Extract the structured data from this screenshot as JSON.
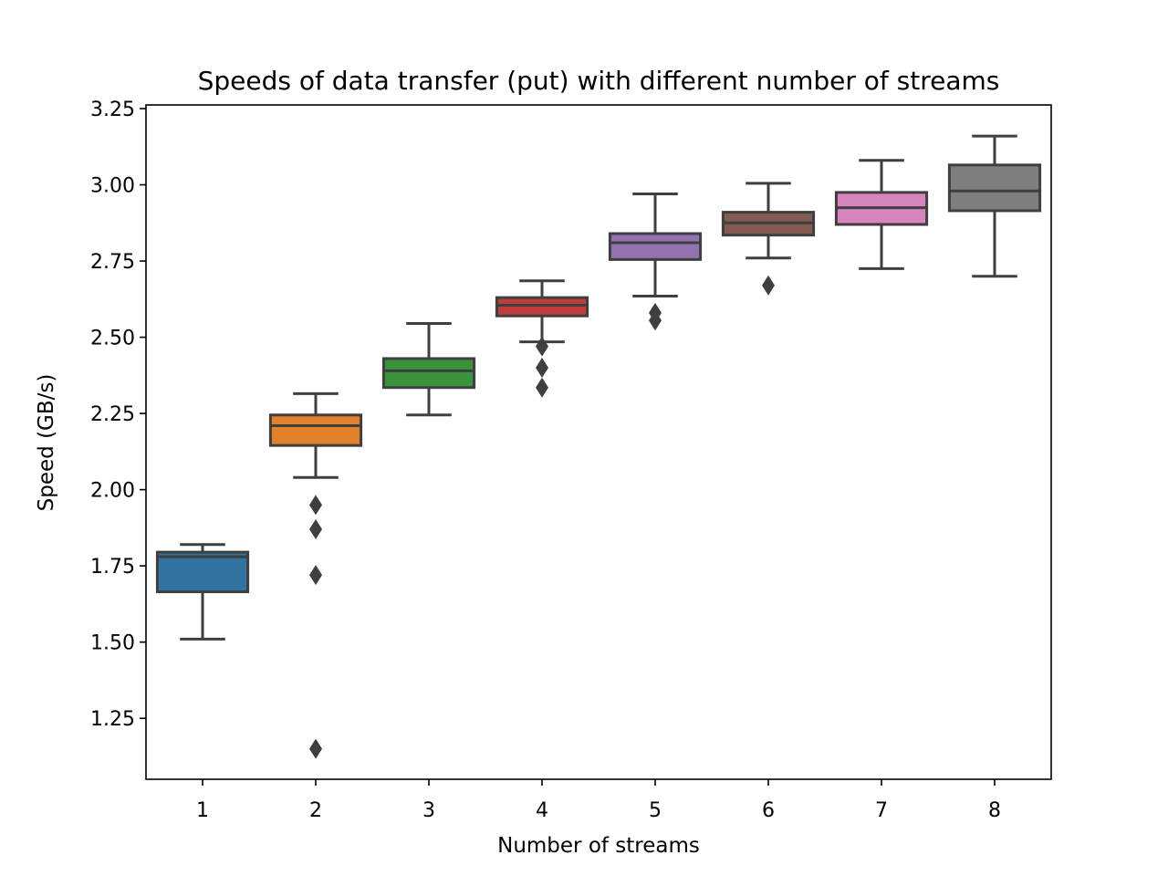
{
  "chart_data": {
    "type": "box",
    "title": "Speeds of data transfer (put) with different number of streams",
    "xlabel": "Number of streams",
    "ylabel": "Speed (GB/s)",
    "categories": [
      "1",
      "2",
      "3",
      "4",
      "5",
      "6",
      "7",
      "8"
    ],
    "ylim": [
      1.05,
      3.262
    ],
    "yticks": [
      1.25,
      1.5,
      1.75,
      2.0,
      2.25,
      2.5,
      2.75,
      3.0,
      3.25
    ],
    "ytick_labels": [
      "1.25",
      "1.50",
      "1.75",
      "2.00",
      "2.25",
      "2.50",
      "2.75",
      "3.00",
      "3.25"
    ],
    "grid": false,
    "legend": "none",
    "boxes": [
      {
        "category": "1",
        "whisker_low": 1.51,
        "q1": 1.665,
        "median": 1.78,
        "q3": 1.795,
        "whisker_high": 1.82,
        "outliers": [],
        "color": "#3274a1"
      },
      {
        "category": "2",
        "whisker_low": 2.04,
        "q1": 2.145,
        "median": 2.21,
        "q3": 2.245,
        "whisker_high": 2.315,
        "outliers": [
          1.95,
          1.87,
          1.72,
          1.15
        ],
        "color": "#e1812c"
      },
      {
        "category": "3",
        "whisker_low": 2.245,
        "q1": 2.335,
        "median": 2.39,
        "q3": 2.43,
        "whisker_high": 2.545,
        "outliers": [],
        "color": "#3a923a"
      },
      {
        "category": "4",
        "whisker_low": 2.485,
        "q1": 2.57,
        "median": 2.605,
        "q3": 2.63,
        "whisker_high": 2.685,
        "outliers": [
          2.47,
          2.4,
          2.335
        ],
        "color": "#c03d3e"
      },
      {
        "category": "5",
        "whisker_low": 2.635,
        "q1": 2.755,
        "median": 2.81,
        "q3": 2.84,
        "whisker_high": 2.97,
        "outliers": [
          2.58,
          2.555
        ],
        "color": "#9372b2"
      },
      {
        "category": "6",
        "whisker_low": 2.76,
        "q1": 2.835,
        "median": 2.875,
        "q3": 2.91,
        "whisker_high": 3.005,
        "outliers": [
          2.67
        ],
        "color": "#845b53"
      },
      {
        "category": "7",
        "whisker_low": 2.725,
        "q1": 2.87,
        "median": 2.925,
        "q3": 2.975,
        "whisker_high": 3.08,
        "outliers": [],
        "color": "#d684bd"
      },
      {
        "category": "8",
        "whisker_low": 2.7,
        "q1": 2.915,
        "median": 2.98,
        "q3": 3.065,
        "whisker_high": 3.16,
        "outliers": [],
        "color": "#7f7f7f"
      }
    ]
  }
}
